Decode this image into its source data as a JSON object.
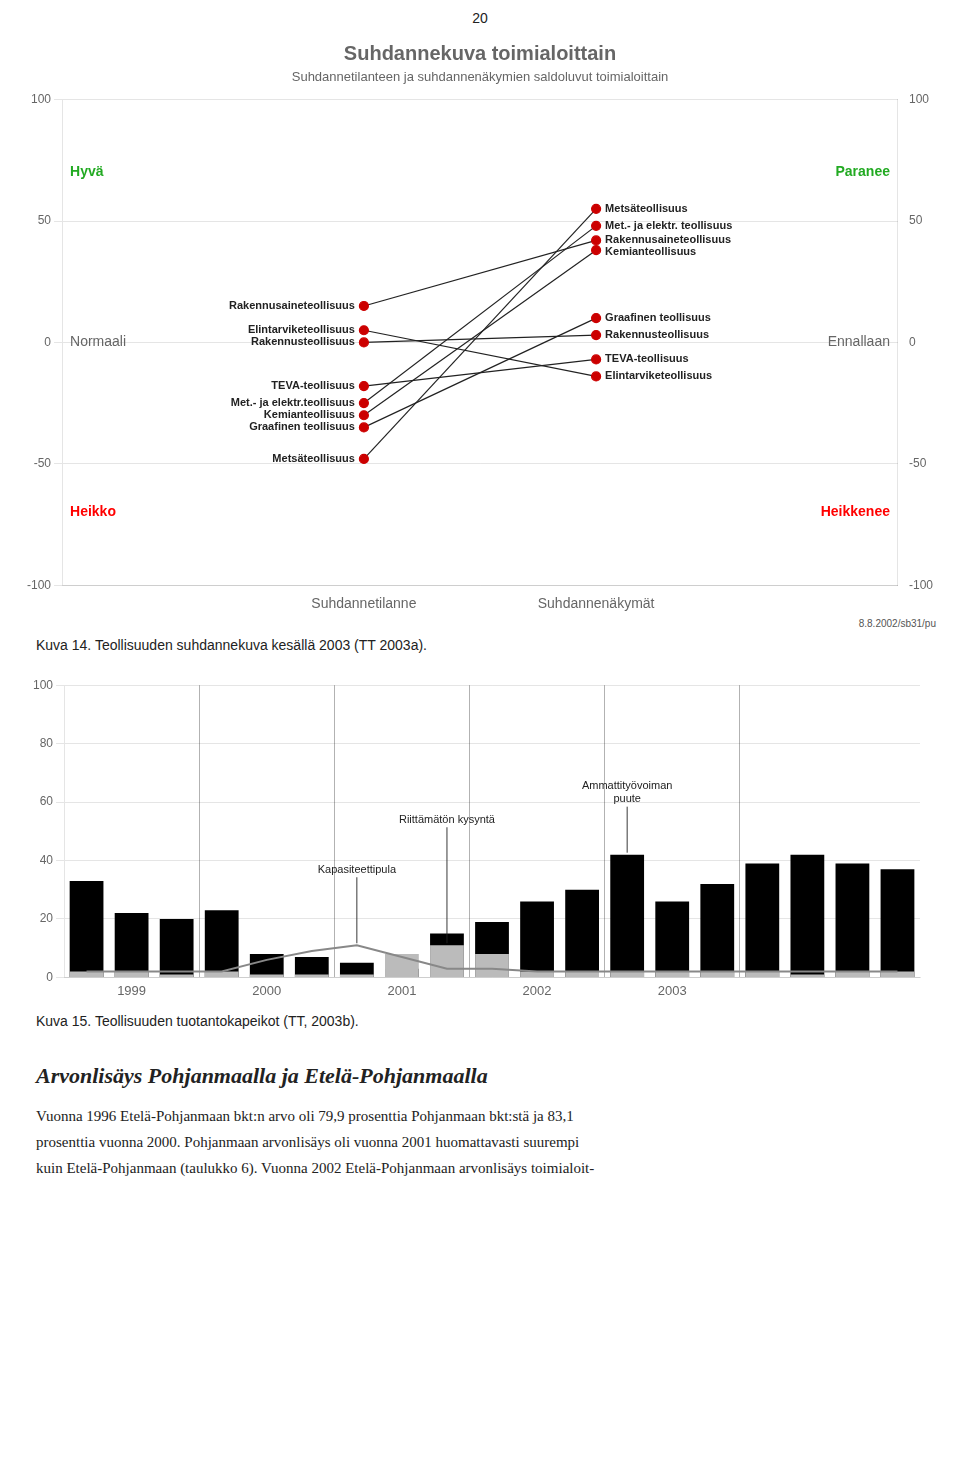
{
  "page_number": "20",
  "chart_data": [
    {
      "type": "slope",
      "title": "Suhdannekuva toimialoittain",
      "subtitle": "Suhdannetilanteen ja suhdannenäkymien saldoluvut toimialoittain",
      "categories": [
        "Suhdannetilanne",
        "Suhdannenäkymät"
      ],
      "ylim": [
        -100,
        100
      ],
      "yticks": [
        -100,
        -50,
        0,
        50,
        100
      ],
      "grid": true,
      "color": "#cc0000",
      "marker": "circle",
      "series": [
        {
          "labels": [
            "Rakennusaineteollisuus",
            "Rakennusaineteollisuus"
          ],
          "values": [
            15,
            42
          ]
        },
        {
          "labels": [
            "Elintarviketeollisuus",
            "Elintarviketeollisuus"
          ],
          "values": [
            5,
            -14
          ]
        },
        {
          "labels": [
            "Rakennusteollisuus",
            "Rakennusteollisuus"
          ],
          "values": [
            0,
            3
          ]
        },
        {
          "labels": [
            "TEVA-teollisuus",
            "TEVA-teollisuus"
          ],
          "values": [
            -18,
            -7
          ]
        },
        {
          "labels": [
            "Met.- ja elektr.teollisuus",
            "Met.- ja elektr. teollisuus"
          ],
          "values": [
            -25,
            48
          ]
        },
        {
          "labels": [
            "Kemianteollisuus",
            "Kemianteollisuus"
          ],
          "values": [
            -30,
            38
          ]
        },
        {
          "labels": [
            "Graafinen teollisuus",
            "Graafinen teollisuus"
          ],
          "values": [
            -35,
            10
          ]
        },
        {
          "labels": [
            "Metsäteollisuus",
            "Metsäteollisuus"
          ],
          "values": [
            -48,
            55
          ]
        }
      ],
      "zone_labels": [
        {
          "left": "Hyvä",
          "right": "Paranee",
          "color": "#22aa22"
        },
        {
          "left": "Normaali",
          "right": "Ennallaan"
        },
        {
          "left": "Heikko",
          "right": "Heikkenee",
          "color": "#ff0000"
        }
      ],
      "note": "8.8.2002/sb31/pu",
      "caption": "Kuva 14. Teollisuuden suhdannekuva kesällä 2003 (TT 2003a)."
    },
    {
      "type": "bar",
      "categories": [
        null,
        "1999",
        null,
        null,
        "2000",
        null,
        null,
        "2001",
        null,
        null,
        "2002",
        null,
        null,
        "2003",
        null,
        null,
        null,
        null,
        null
      ],
      "series": [
        {
          "type": "bar",
          "color": "#000000",
          "annotation": "Ammattityövoiman\npuute",
          "values": [
            33,
            22,
            20,
            23,
            8,
            7,
            5,
            3,
            15,
            19,
            26,
            30,
            42,
            26,
            32,
            39,
            42,
            39,
            37
          ]
        },
        {
          "type": "bar",
          "color": "#bbbbbb",
          "annotation": "Riittämätön kysyntä",
          "values": [
            2,
            2,
            1,
            2,
            1,
            1,
            1,
            8,
            11,
            8,
            2,
            2,
            2,
            2,
            2,
            2,
            1,
            2,
            2
          ]
        },
        {
          "type": "line",
          "color": "#888888",
          "annotation": "Kapasiteettipula",
          "values": [
            2,
            2,
            2,
            2,
            6,
            9,
            11,
            7,
            3,
            3,
            2,
            2,
            2,
            2,
            2,
            2,
            2,
            2,
            2
          ]
        }
      ],
      "ylim": [
        0,
        100
      ],
      "yticks": [
        0,
        20,
        40,
        60,
        80,
        100
      ],
      "grid": true,
      "caption": "Kuva 15. Teollisuuden tuotantokapeikot (TT, 2003b)."
    }
  ],
  "section_title": "Arvonlisäys Pohjanmaalla ja Etelä-Pohjanmaalla",
  "body_lines": [
    "Vuonna 1996 Etelä-Pohjanmaan bkt:n arvo oli 79,9 prosenttia Pohjanmaan bkt:stä ja 83,1",
    "prosenttia vuonna 2000. Pohjanmaan arvonlisäys oli vuonna 2001 huomattavasti suurempi",
    "kuin Etelä-Pohjanmaan (taulukko 6). Vuonna 2002 Etelä-Pohjanmaan arvonlisäys toimialoit-"
  ]
}
